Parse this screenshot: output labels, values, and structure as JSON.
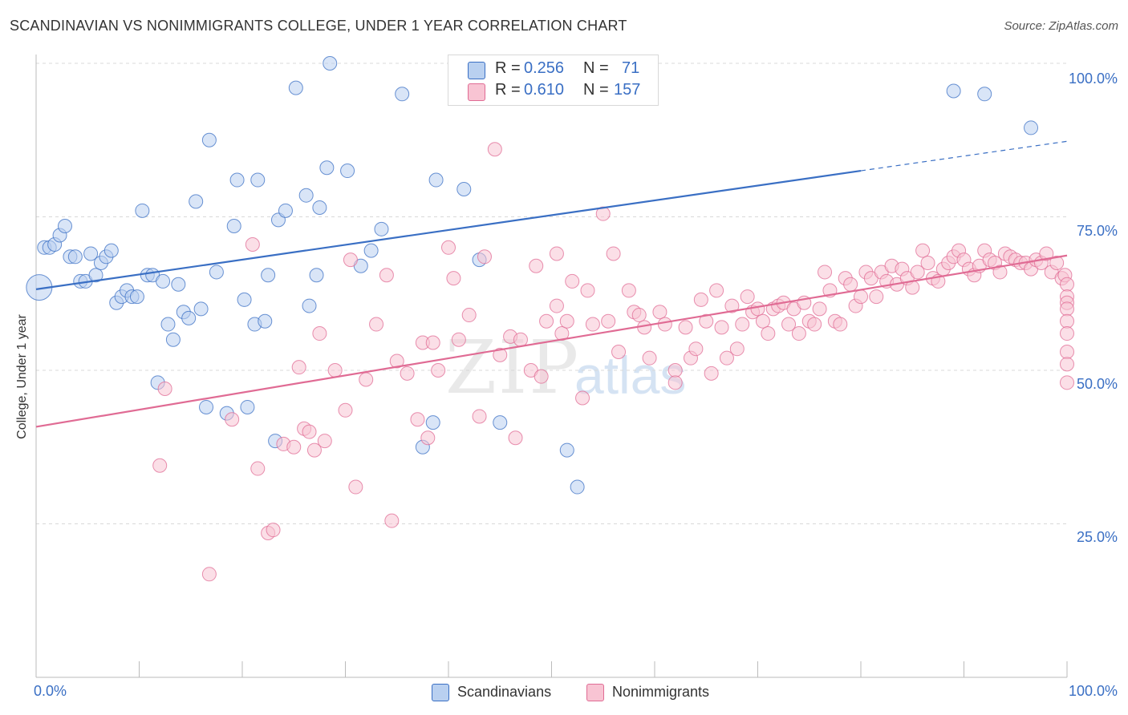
{
  "title": "SCANDINAVIAN VS NONIMMIGRANTS COLLEGE, UNDER 1 YEAR CORRELATION CHART",
  "source": "Source: ZipAtlas.com",
  "watermark": {
    "zip": "ZIP",
    "atlas": "atlas"
  },
  "legend": {
    "row1": {
      "r_label": "R =",
      "r_value": "0.256",
      "n_label": "N =",
      "n_value": "71"
    },
    "row2": {
      "r_label": "R =",
      "r_value": "0.610",
      "n_label": "N =",
      "n_value": "157"
    }
  },
  "colors": {
    "blue": "#3a6fc4",
    "blue_fill": "#b9d0f0",
    "pink": "#e06b94",
    "pink_fill": "#f8c4d3",
    "grid": "#d8d8d8"
  },
  "chart_data": {
    "type": "scatter",
    "title": "SCANDINAVIAN VS NONIMMIGRANTS COLLEGE, UNDER 1 YEAR CORRELATION CHART",
    "xlabel": "",
    "ylabel": "College, Under 1 year",
    "xlim": [
      0,
      100
    ],
    "ylim": [
      0,
      100
    ],
    "x_tick_labels": [
      "0.0%",
      "100.0%"
    ],
    "y_tick_labels": [
      "25.0%",
      "50.0%",
      "75.0%",
      "100.0%"
    ],
    "y_ticks": [
      25,
      50,
      75,
      100
    ],
    "grid": true,
    "legend_position": "top-center",
    "series": [
      {
        "name": "Scandinavians",
        "color": "#3a6fc4",
        "r": 0.256,
        "n": 71,
        "trend": {
          "x0": 0,
          "y0": 63.2,
          "x1": 80,
          "y1": 82.5,
          "dashed_to_x": 100,
          "dashed_to_y": 87.3
        },
        "points": [
          [
            0.3,
            63.5
          ],
          [
            0.8,
            70
          ],
          [
            1.3,
            70
          ],
          [
            1.8,
            70.5
          ],
          [
            2.3,
            72
          ],
          [
            2.8,
            73.5
          ],
          [
            3.3,
            68.5
          ],
          [
            3.8,
            68.5
          ],
          [
            4.3,
            64.5
          ],
          [
            4.8,
            64.5
          ],
          [
            5.3,
            69
          ],
          [
            5.8,
            65.5
          ],
          [
            6.3,
            67.5
          ],
          [
            6.8,
            68.5
          ],
          [
            7.3,
            69.5
          ],
          [
            7.8,
            61
          ],
          [
            8.3,
            62
          ],
          [
            8.8,
            63
          ],
          [
            9.3,
            62
          ],
          [
            9.8,
            62
          ],
          [
            10.3,
            76
          ],
          [
            10.8,
            65.5
          ],
          [
            11.3,
            65.5
          ],
          [
            11.8,
            48
          ],
          [
            12.3,
            64.5
          ],
          [
            12.8,
            57.5
          ],
          [
            13.3,
            55
          ],
          [
            13.8,
            64
          ],
          [
            14.3,
            59.5
          ],
          [
            14.8,
            58.5
          ],
          [
            15.5,
            77.5
          ],
          [
            16,
            60
          ],
          [
            16.5,
            44
          ],
          [
            16.8,
            87.5
          ],
          [
            17.5,
            66
          ],
          [
            18.5,
            43
          ],
          [
            19.2,
            73.5
          ],
          [
            19.5,
            81
          ],
          [
            20.2,
            61.5
          ],
          [
            20.5,
            44
          ],
          [
            21.2,
            57.5
          ],
          [
            21.5,
            81
          ],
          [
            22.2,
            58
          ],
          [
            22.5,
            65.5
          ],
          [
            23.2,
            38.5
          ],
          [
            23.5,
            74.5
          ],
          [
            24.2,
            76
          ],
          [
            25.2,
            96
          ],
          [
            26.2,
            78.5
          ],
          [
            26.5,
            60.5
          ],
          [
            27.2,
            65.5
          ],
          [
            27.5,
            76.5
          ],
          [
            28.2,
            83
          ],
          [
            28.5,
            100
          ],
          [
            30.2,
            82.5
          ],
          [
            31.5,
            67
          ],
          [
            32.5,
            69.5
          ],
          [
            33.5,
            73
          ],
          [
            35.5,
            95
          ],
          [
            37.5,
            37.5
          ],
          [
            38.5,
            41.5
          ],
          [
            38.8,
            81
          ],
          [
            41.5,
            79.5
          ],
          [
            43,
            68
          ],
          [
            45,
            41.5
          ],
          [
            48.5,
            98.5
          ],
          [
            51.5,
            37
          ],
          [
            52.5,
            31
          ],
          [
            89,
            95.5
          ],
          [
            92,
            95
          ],
          [
            96.5,
            89.5
          ]
        ]
      },
      {
        "name": "Nonimmigrants",
        "color": "#e06b94",
        "r": 0.61,
        "n": 157,
        "trend": {
          "x0": 0,
          "y0": 40.8,
          "x1": 100,
          "y1": 68.7
        },
        "points": [
          [
            12,
            34.5
          ],
          [
            12.5,
            47
          ],
          [
            16.8,
            16.8
          ],
          [
            19,
            42
          ],
          [
            21,
            70.5
          ],
          [
            21.5,
            34
          ],
          [
            22.5,
            23.5
          ],
          [
            23,
            24
          ],
          [
            24,
            38
          ],
          [
            25,
            37.5
          ],
          [
            25.5,
            50.5
          ],
          [
            26,
            40.5
          ],
          [
            26.5,
            40
          ],
          [
            27,
            37
          ],
          [
            27.5,
            56
          ],
          [
            28,
            38.5
          ],
          [
            29,
            50
          ],
          [
            30,
            43.5
          ],
          [
            30.5,
            68
          ],
          [
            31,
            31
          ],
          [
            32,
            48.5
          ],
          [
            33,
            57.5
          ],
          [
            34,
            65.5
          ],
          [
            34.5,
            25.5
          ],
          [
            35,
            51.5
          ],
          [
            36,
            49.5
          ],
          [
            37,
            42
          ],
          [
            37.5,
            54.5
          ],
          [
            38,
            39
          ],
          [
            38.5,
            54.5
          ],
          [
            39,
            50
          ],
          [
            40,
            70
          ],
          [
            40.5,
            65
          ],
          [
            41,
            55
          ],
          [
            42,
            59
          ],
          [
            43,
            42.5
          ],
          [
            43.5,
            68.5
          ],
          [
            44.5,
            86
          ],
          [
            45,
            52.5
          ],
          [
            46,
            55.5
          ],
          [
            46.5,
            39
          ],
          [
            47,
            55
          ],
          [
            48,
            50
          ],
          [
            48.5,
            67
          ],
          [
            49,
            49
          ],
          [
            49.5,
            58
          ],
          [
            50.5,
            60.5
          ],
          [
            50.5,
            69
          ],
          [
            51,
            56
          ],
          [
            51.5,
            58
          ],
          [
            52,
            64.5
          ],
          [
            53,
            45.5
          ],
          [
            53.5,
            63
          ],
          [
            54,
            57.5
          ],
          [
            55,
            75.5
          ],
          [
            55.5,
            58
          ],
          [
            56,
            69
          ],
          [
            56.5,
            53
          ],
          [
            57.5,
            63
          ],
          [
            58,
            59.5
          ],
          [
            58.5,
            59
          ],
          [
            59,
            57
          ],
          [
            59.5,
            52
          ],
          [
            60.5,
            59.5
          ],
          [
            61,
            57.5
          ],
          [
            62,
            50
          ],
          [
            62,
            48
          ],
          [
            63,
            57
          ],
          [
            63.5,
            52
          ],
          [
            64,
            53.5
          ],
          [
            64.5,
            61.5
          ],
          [
            65,
            58
          ],
          [
            65.5,
            49.5
          ],
          [
            66,
            63
          ],
          [
            66.5,
            57
          ],
          [
            67,
            52
          ],
          [
            67.5,
            60.5
          ],
          [
            68,
            53.5
          ],
          [
            68.5,
            57.5
          ],
          [
            69,
            62
          ],
          [
            69.5,
            59.5
          ],
          [
            70,
            60
          ],
          [
            70.5,
            58
          ],
          [
            71,
            56
          ],
          [
            71.5,
            60
          ],
          [
            72,
            60.5
          ],
          [
            72.5,
            61
          ],
          [
            73,
            57.5
          ],
          [
            73.5,
            60
          ],
          [
            74,
            56
          ],
          [
            74.5,
            61
          ],
          [
            75,
            58
          ],
          [
            75.5,
            57.5
          ],
          [
            76,
            60
          ],
          [
            76.5,
            66
          ],
          [
            77,
            63
          ],
          [
            77.5,
            58
          ],
          [
            78,
            57.5
          ],
          [
            78.5,
            65
          ],
          [
            79,
            64
          ],
          [
            79.5,
            60.5
          ],
          [
            80,
            62
          ],
          [
            80.5,
            66
          ],
          [
            81,
            65
          ],
          [
            81.5,
            62
          ],
          [
            82,
            66
          ],
          [
            82.5,
            64.5
          ],
          [
            83,
            67
          ],
          [
            83.5,
            64
          ],
          [
            84,
            66.5
          ],
          [
            84.5,
            65
          ],
          [
            85,
            63.5
          ],
          [
            85.5,
            66
          ],
          [
            86,
            69.5
          ],
          [
            86.5,
            67.5
          ],
          [
            87,
            65
          ],
          [
            87.5,
            64.5
          ],
          [
            88,
            66.5
          ],
          [
            88.5,
            67.5
          ],
          [
            89,
            68.5
          ],
          [
            89.5,
            69.5
          ],
          [
            90,
            68
          ],
          [
            90.5,
            66.5
          ],
          [
            91,
            65.5
          ],
          [
            91.5,
            67
          ],
          [
            92,
            69.5
          ],
          [
            92.5,
            68
          ],
          [
            93,
            67.5
          ],
          [
            93.5,
            66
          ],
          [
            94,
            69
          ],
          [
            94.5,
            68.5
          ],
          [
            95,
            68
          ],
          [
            95.5,
            67.5
          ],
          [
            96,
            67.5
          ],
          [
            96.5,
            66.5
          ],
          [
            97,
            68
          ],
          [
            97.5,
            67.5
          ],
          [
            98,
            69
          ],
          [
            98.5,
            66
          ],
          [
            99,
            67.5
          ],
          [
            99.5,
            65
          ],
          [
            99.8,
            65.5
          ],
          [
            100,
            64
          ],
          [
            100.2,
            62
          ],
          [
            100.5,
            61
          ],
          [
            101,
            60
          ],
          [
            101.5,
            58
          ],
          [
            102,
            56
          ],
          [
            102.5,
            53
          ],
          [
            103,
            51
          ],
          [
            103.5,
            48
          ]
        ]
      }
    ]
  },
  "bottom_legend": {
    "series1": "Scandinavians",
    "series2": "Nonimmigrants"
  },
  "axes": {
    "ylabel": "College, Under 1 year",
    "x_min_label": "0.0%",
    "x_max_label": "100.0%",
    "y_25": "25.0%",
    "y_50": "50.0%",
    "y_75": "75.0%",
    "y_100": "100.0%"
  }
}
